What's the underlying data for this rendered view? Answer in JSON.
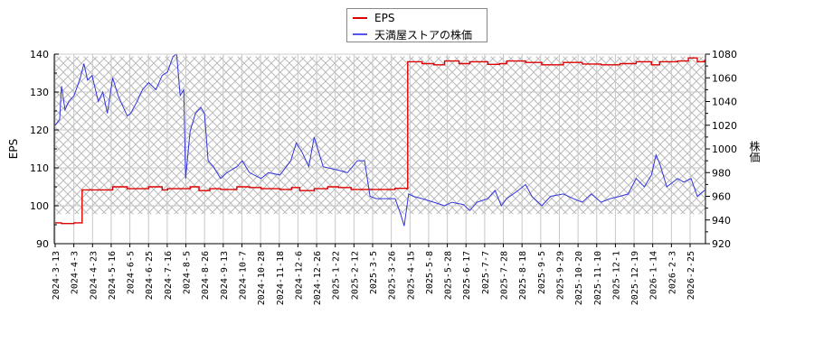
{
  "chart_data": {
    "type": "line",
    "title": "",
    "legend": {
      "position": "top-center",
      "entries": [
        {
          "label": "EPS",
          "color": "#dd0000"
        },
        {
          "label": "天満屋ストアの株価",
          "color": "#3333dd"
        }
      ]
    },
    "left_axis": {
      "label": "EPS",
      "min": 90,
      "max": 140,
      "ticks": [
        90,
        100,
        110,
        120,
        130,
        140
      ]
    },
    "right_axis": {
      "label": "株価",
      "min": 920,
      "max": 1080,
      "ticks": [
        920,
        940,
        960,
        980,
        1000,
        1020,
        1040,
        1060,
        1080
      ]
    },
    "x_tick_labels": [
      "2024-3-13",
      "2024-4-3",
      "2024-4-23",
      "2024-5-16",
      "2024-6-5",
      "2024-6-25",
      "2024-7-16",
      "2024-8-5",
      "2024-8-26",
      "2024-9-13",
      "2024-10-7",
      "2024-10-28",
      "2024-11-18",
      "2024-12-6",
      "2024-12-26",
      "2025-1-22",
      "2025-2-12",
      "2025-3-5",
      "2025-3-26",
      "2025-4-15",
      "2025-5-8",
      "2025-5-28",
      "2025-6-17",
      "2025-7-7",
      "2025-7-28",
      "2025-8-18",
      "2025-9-5",
      "2025-9-29",
      "2025-10-20",
      "2025-11-10",
      "2025-12-1",
      "2025-12-19",
      "2026-1-14",
      "2026-2-3",
      "2026-2-25"
    ],
    "grid": true,
    "hatched_band": {
      "axis": "right",
      "from": 945,
      "to": 1078
    },
    "series": [
      {
        "name": "EPS",
        "axis": "left",
        "color": "#dd0000",
        "points": [
          [
            "2024-3-13",
            95.5
          ],
          [
            "2024-3-20",
            95.3
          ],
          [
            "2024-4-3",
            95.5
          ],
          [
            "2024-4-10",
            95.5
          ],
          [
            "2024-4-12",
            104.2
          ],
          [
            "2024-5-10",
            104.2
          ],
          [
            "2024-5-16",
            105.0
          ],
          [
            "2024-6-1",
            104.5
          ],
          [
            "2024-6-15",
            104.5
          ],
          [
            "2024-6-25",
            105.0
          ],
          [
            "2024-7-10",
            104.2
          ],
          [
            "2024-7-16",
            104.5
          ],
          [
            "2024-8-1",
            104.5
          ],
          [
            "2024-8-10",
            105.0
          ],
          [
            "2024-8-20",
            104.0
          ],
          [
            "2024-9-1",
            104.5
          ],
          [
            "2024-9-13",
            104.3
          ],
          [
            "2024-10-1",
            105.0
          ],
          [
            "2024-10-15",
            104.8
          ],
          [
            "2024-10-28",
            104.5
          ],
          [
            "2024-11-18",
            104.3
          ],
          [
            "2024-12-1",
            104.8
          ],
          [
            "2024-12-10",
            104.0
          ],
          [
            "2024-12-26",
            104.5
          ],
          [
            "2025-1-10",
            105.0
          ],
          [
            "2025-1-22",
            104.8
          ],
          [
            "2025-2-5",
            104.3
          ],
          [
            "2025-2-12",
            104.3
          ],
          [
            "2025-3-5",
            104.3
          ],
          [
            "2025-3-26",
            104.6
          ],
          [
            "2025-4-8",
            104.5
          ],
          [
            "2025-4-9",
            138.0
          ],
          [
            "2025-4-25",
            137.5
          ],
          [
            "2025-5-8",
            137.2
          ],
          [
            "2025-5-20",
            138.2
          ],
          [
            "2025-6-5",
            137.5
          ],
          [
            "2025-6-17",
            138.0
          ],
          [
            "2025-7-7",
            137.3
          ],
          [
            "2025-7-20",
            137.5
          ],
          [
            "2025-7-28",
            138.2
          ],
          [
            "2025-8-18",
            137.8
          ],
          [
            "2025-9-5",
            137.2
          ],
          [
            "2025-9-29",
            137.8
          ],
          [
            "2025-10-20",
            137.4
          ],
          [
            "2025-11-10",
            137.2
          ],
          [
            "2025-12-1",
            137.5
          ],
          [
            "2025-12-19",
            138.0
          ],
          [
            "2026-1-5",
            137.2
          ],
          [
            "2026-1-14",
            138.0
          ],
          [
            "2026-2-3",
            138.2
          ],
          [
            "2026-2-15",
            139.0
          ],
          [
            "2026-2-25",
            138.0
          ],
          [
            "2026-3-5",
            138.5
          ]
        ]
      },
      {
        "name": "天満屋ストアの株価",
        "axis": "right",
        "color": "#3333dd",
        "points": [
          [
            "2024-3-13",
            1020
          ],
          [
            "2024-3-18",
            1025
          ],
          [
            "2024-3-20",
            1053
          ],
          [
            "2024-3-24",
            1033
          ],
          [
            "2024-3-28",
            1040
          ],
          [
            "2024-4-3",
            1045
          ],
          [
            "2024-4-10",
            1060
          ],
          [
            "2024-4-14",
            1072
          ],
          [
            "2024-4-18",
            1058
          ],
          [
            "2024-4-23",
            1062
          ],
          [
            "2024-4-30",
            1040
          ],
          [
            "2024-5-5",
            1048
          ],
          [
            "2024-5-10",
            1030
          ],
          [
            "2024-5-16",
            1060
          ],
          [
            "2024-5-22",
            1045
          ],
          [
            "2024-6-1",
            1028
          ],
          [
            "2024-6-5",
            1030
          ],
          [
            "2024-6-12",
            1040
          ],
          [
            "2024-6-18",
            1050
          ],
          [
            "2024-6-25",
            1056
          ],
          [
            "2024-7-3",
            1050
          ],
          [
            "2024-7-10",
            1062
          ],
          [
            "2024-7-16",
            1065
          ],
          [
            "2024-7-22",
            1078
          ],
          [
            "2024-7-26",
            1080
          ],
          [
            "2024-7-30",
            1045
          ],
          [
            "2024-8-3",
            1050
          ],
          [
            "2024-8-5",
            975
          ],
          [
            "2024-8-10",
            1015
          ],
          [
            "2024-8-16",
            1030
          ],
          [
            "2024-8-22",
            1035
          ],
          [
            "2024-8-26",
            1030
          ],
          [
            "2024-8-30",
            990
          ],
          [
            "2024-9-5",
            985
          ],
          [
            "2024-9-13",
            975
          ],
          [
            "2024-9-20",
            980
          ],
          [
            "2024-10-1",
            985
          ],
          [
            "2024-10-7",
            990
          ],
          [
            "2024-10-15",
            980
          ],
          [
            "2024-10-28",
            975
          ],
          [
            "2024-11-5",
            980
          ],
          [
            "2024-11-18",
            978
          ],
          [
            "2024-11-30",
            990
          ],
          [
            "2024-12-6",
            1005
          ],
          [
            "2024-12-12",
            998
          ],
          [
            "2024-12-20",
            985
          ],
          [
            "2024-12-26",
            1010
          ],
          [
            "2025-1-5",
            985
          ],
          [
            "2025-1-22",
            982
          ],
          [
            "2025-2-1",
            980
          ],
          [
            "2025-2-12",
            990
          ],
          [
            "2025-2-20",
            990
          ],
          [
            "2025-2-26",
            960
          ],
          [
            "2025-3-5",
            958
          ],
          [
            "2025-3-15",
            958
          ],
          [
            "2025-3-26",
            958
          ],
          [
            "2025-4-1",
            945
          ],
          [
            "2025-4-5",
            935
          ],
          [
            "2025-4-10",
            962
          ],
          [
            "2025-4-15",
            960
          ],
          [
            "2025-4-25",
            958
          ],
          [
            "2025-5-8",
            955
          ],
          [
            "2025-5-20",
            952
          ],
          [
            "2025-5-28",
            955
          ],
          [
            "2025-6-10",
            953
          ],
          [
            "2025-6-17",
            948
          ],
          [
            "2025-6-25",
            955
          ],
          [
            "2025-7-7",
            958
          ],
          [
            "2025-7-15",
            965
          ],
          [
            "2025-7-22",
            952
          ],
          [
            "2025-7-28",
            958
          ],
          [
            "2025-8-10",
            965
          ],
          [
            "2025-8-18",
            970
          ],
          [
            "2025-8-25",
            960
          ],
          [
            "2025-9-5",
            952
          ],
          [
            "2025-9-15",
            960
          ],
          [
            "2025-9-29",
            962
          ],
          [
            "2025-10-10",
            958
          ],
          [
            "2025-10-20",
            955
          ],
          [
            "2025-10-30",
            962
          ],
          [
            "2025-11-10",
            955
          ],
          [
            "2025-11-20",
            958
          ],
          [
            "2025-12-1",
            960
          ],
          [
            "2025-12-10",
            962
          ],
          [
            "2025-12-19",
            975
          ],
          [
            "2025-12-28",
            968
          ],
          [
            "2026-1-5",
            978
          ],
          [
            "2026-1-10",
            995
          ],
          [
            "2026-1-14",
            988
          ],
          [
            "2026-1-22",
            968
          ],
          [
            "2026-2-3",
            975
          ],
          [
            "2026-2-10",
            972
          ],
          [
            "2026-2-18",
            975
          ],
          [
            "2026-2-25",
            960
          ],
          [
            "2026-3-5",
            965
          ]
        ]
      }
    ]
  }
}
